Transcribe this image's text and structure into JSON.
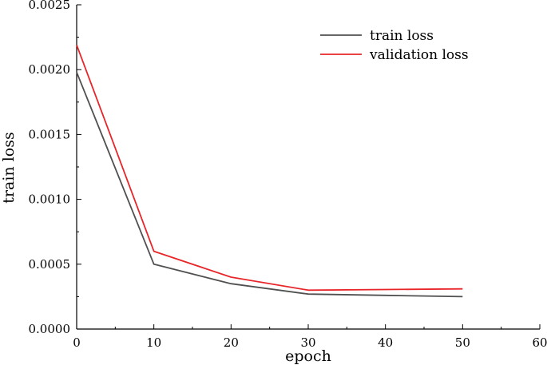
{
  "chart_data": {
    "type": "line",
    "title": "",
    "xlabel": "epoch",
    "ylabel": "train loss",
    "xlim": [
      0,
      60
    ],
    "ylim": [
      0,
      0.0025
    ],
    "x_ticks": [
      0,
      10,
      20,
      30,
      40,
      50,
      60
    ],
    "x_tick_labels": [
      "0",
      "10",
      "20",
      "30",
      "40",
      "50",
      "60"
    ],
    "y_ticks": [
      0,
      0.0005,
      0.001,
      0.0015,
      0.002,
      0.0025
    ],
    "y_tick_labels": [
      "0.0000",
      "0.0005",
      "0.0010",
      "0.0015",
      "0.0020",
      "0.0025"
    ],
    "grid": false,
    "legend_position": "top-right",
    "series": [
      {
        "name": "train loss",
        "color": "#505050",
        "x": [
          0,
          10,
          20,
          30,
          40,
          50
        ],
        "values": [
          0.00198,
          0.0005,
          0.00035,
          0.00027,
          0.00026,
          0.00025
        ]
      },
      {
        "name": "validation loss",
        "color": "#e8262a",
        "x": [
          0,
          10,
          20,
          30,
          40,
          50
        ],
        "values": [
          0.00219,
          0.0006,
          0.0004,
          0.0003,
          0.000305,
          0.00031
        ]
      }
    ]
  }
}
